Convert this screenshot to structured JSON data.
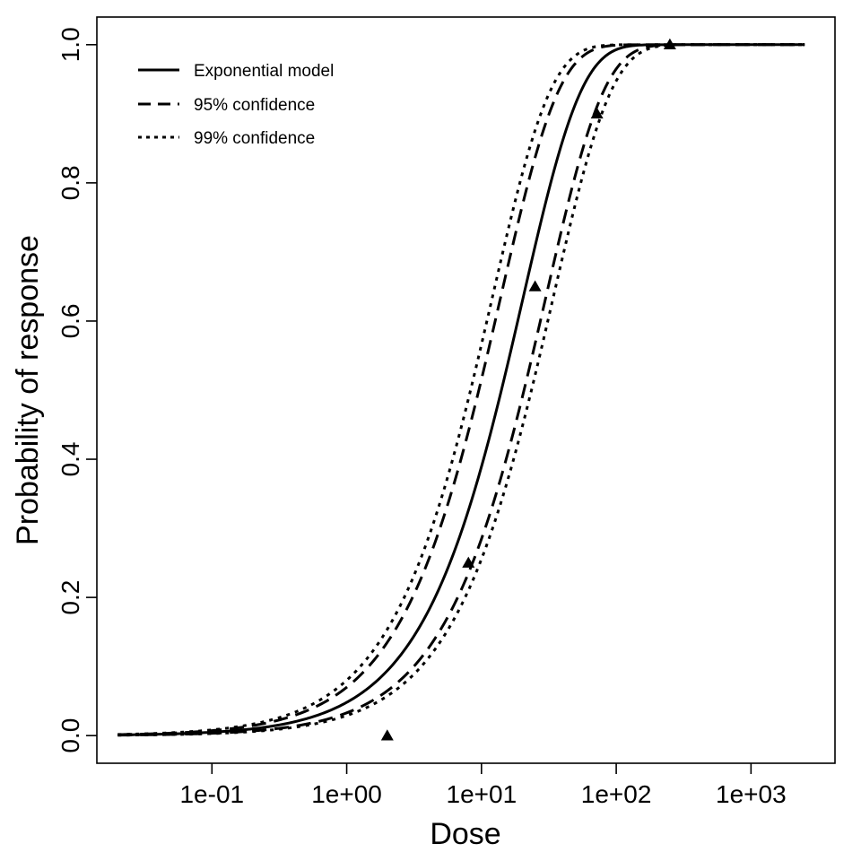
{
  "chart_data": {
    "type": "line",
    "title": "",
    "xlabel": "Dose",
    "ylabel": "Probability of response",
    "x_scale": "log10",
    "xlim": [
      0.014,
      4200
    ],
    "ylim": [
      -0.04,
      1.04
    ],
    "x_ticks": [
      {
        "value": 0.1,
        "label": "1e-01"
      },
      {
        "value": 1,
        "label": "1e+00"
      },
      {
        "value": 10,
        "label": "1e+01"
      },
      {
        "value": 100,
        "label": "1e+02"
      },
      {
        "value": 1000,
        "label": "1e+03"
      }
    ],
    "y_ticks": [
      {
        "value": 0.0,
        "label": "0.0"
      },
      {
        "value": 0.2,
        "label": "0.2"
      },
      {
        "value": 0.4,
        "label": "0.4"
      },
      {
        "value": 0.6,
        "label": "0.6"
      },
      {
        "value": 0.8,
        "label": "0.8"
      },
      {
        "value": 1.0,
        "label": "1.0"
      }
    ],
    "grid": false,
    "legend_position": "top-left",
    "legend": [
      {
        "label": "Exponential model",
        "style": "solid"
      },
      {
        "label": "95% confidence",
        "style": "dashed"
      },
      {
        "label": "99% confidence",
        "style": "dotted"
      }
    ],
    "curve_dose_range": [
      0.02,
      2500
    ],
    "series": [
      {
        "style": "solid",
        "k": 0.0493
      },
      {
        "style": "dashed",
        "k": 0.0725
      },
      {
        "style": "dashed",
        "k": 0.0335
      },
      {
        "style": "dotted",
        "k": 0.0835
      },
      {
        "style": "dotted",
        "k": 0.0295
      }
    ],
    "observed": {
      "marker": "triangle",
      "points": [
        {
          "x": 2.0,
          "y": 0.0
        },
        {
          "x": 8.0,
          "y": 0.25
        },
        {
          "x": 25.0,
          "y": 0.65
        },
        {
          "x": 72.0,
          "y": 0.9
        },
        {
          "x": 250.0,
          "y": 1.0
        }
      ]
    }
  }
}
